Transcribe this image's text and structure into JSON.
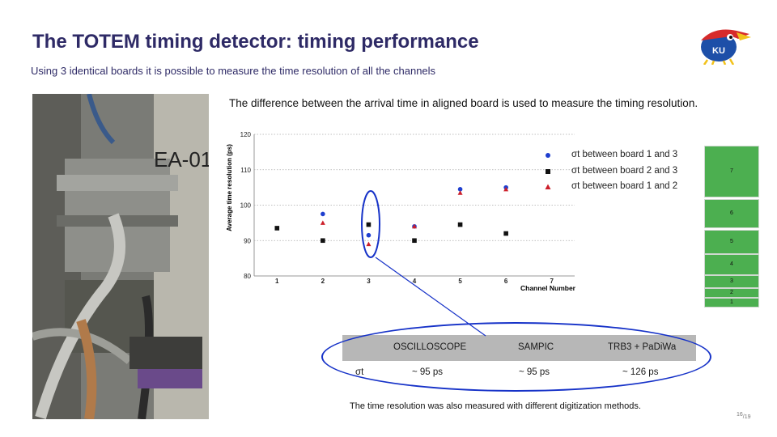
{
  "slide": {
    "title": "The TOTEM timing detector: timing performance",
    "subtitle": "Using 3 identical boards it is possible to measure the time resolution of all the channels",
    "caption_top": "The difference between the arrival time in aligned board is used to measure the timing resolution.",
    "caption_bottom": "The time resolution was also measured with different digitization methods.",
    "page_current": "16",
    "page_total": "/19",
    "photo_text": "EA-01",
    "logo_text": "KU"
  },
  "legend": [
    {
      "label": "σt between board 1 and 3",
      "color": "#1f3fcf",
      "marker": "circle"
    },
    {
      "label": "σt between board 2 and 3",
      "color": "#111111",
      "marker": "square"
    },
    {
      "label": "σt between board 1 and 2",
      "color": "#cc1f2a",
      "marker": "triangle"
    }
  ],
  "chart_data": {
    "type": "scatter",
    "xlabel": "Channel Number",
    "ylabel": "Average time resolution (ps)",
    "xlim": [
      0.5,
      7.5
    ],
    "ylim": [
      80,
      120
    ],
    "x_ticks": [
      1,
      2,
      3,
      4,
      5,
      6,
      7
    ],
    "y_ticks": [
      80,
      90,
      100,
      110,
      120
    ],
    "grid": "horizontal dotted",
    "legend_position": "top-right",
    "series": [
      {
        "name": "σt between board 1 and 3",
        "color": "#1f3fcf",
        "marker": "circle",
        "points": [
          [
            2,
            97.5
          ],
          [
            3,
            91.5
          ],
          [
            4,
            94
          ],
          [
            5,
            104.5
          ],
          [
            6,
            105
          ]
        ]
      },
      {
        "name": "σt between board 2 and 3",
        "color": "#111111",
        "marker": "square",
        "points": [
          [
            1,
            93.5
          ],
          [
            2,
            90
          ],
          [
            3,
            94.5
          ],
          [
            4,
            90
          ],
          [
            5,
            94.5
          ],
          [
            6,
            92
          ]
        ]
      },
      {
        "name": "σt between board 1 and 2",
        "color": "#cc1f2a",
        "marker": "triangle",
        "points": [
          [
            2,
            95
          ],
          [
            3,
            89
          ],
          [
            4,
            94
          ],
          [
            5,
            103.5
          ],
          [
            6,
            104.5
          ]
        ]
      }
    ]
  },
  "side_labels": [
    "7",
    "6",
    "5",
    "4",
    "3",
    "2",
    "1"
  ],
  "table": {
    "headers": [
      "",
      "OSCILLOSCOPE",
      "SAMPIC",
      "TRB3 + PaDiWa"
    ],
    "row_label": "σt",
    "values": [
      "~ 95 ps",
      "~ 95 ps",
      "~ 126 ps"
    ]
  }
}
